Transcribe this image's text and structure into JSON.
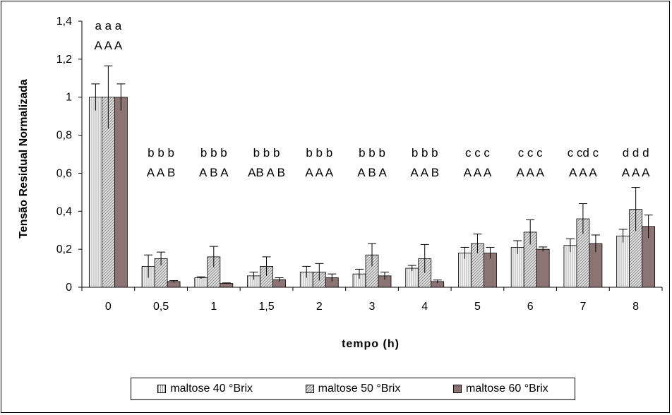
{
  "chart_data": {
    "type": "bar",
    "xlabel": "tempo (h)",
    "ylabel": "Tensão Residual Normalizada",
    "ylim": [
      0,
      1.4
    ],
    "yticks": [
      "0",
      "0,2",
      "0,4",
      "0,6",
      "0,8",
      "1",
      "1,2",
      "1,4"
    ],
    "categories": [
      "0",
      "0,5",
      "1",
      "1,5",
      "2",
      "3",
      "4",
      "5",
      "6",
      "7",
      "8"
    ],
    "series": [
      {
        "name": "maltose 40 °Brix",
        "color": "#f2f2f2",
        "pattern": "vertical-lines",
        "values": [
          1.0,
          0.11,
          0.05,
          0.06,
          0.08,
          0.07,
          0.1,
          0.18,
          0.21,
          0.22,
          0.27
        ],
        "errors": [
          0.07,
          0.06,
          0.005,
          0.02,
          0.03,
          0.025,
          0.015,
          0.03,
          0.035,
          0.035,
          0.035
        ]
      },
      {
        "name": "maltose 50 °Brix",
        "color": "#dcdcdc",
        "pattern": "diagonal-lines",
        "values": [
          1.0,
          0.15,
          0.16,
          0.11,
          0.08,
          0.17,
          0.15,
          0.23,
          0.29,
          0.36,
          0.41
        ],
        "errors": [
          0.165,
          0.035,
          0.055,
          0.05,
          0.045,
          0.06,
          0.075,
          0.05,
          0.065,
          0.08,
          0.115
        ]
      },
      {
        "name": "maltose 60 °Brix",
        "color": "#8c7474",
        "pattern": "solid",
        "values": [
          1.0,
          0.03,
          0.02,
          0.04,
          0.05,
          0.06,
          0.03,
          0.18,
          0.2,
          0.23,
          0.32
        ],
        "errors": [
          0.07,
          0.005,
          0.003,
          0.01,
          0.02,
          0.02,
          0.008,
          0.03,
          0.012,
          0.045,
          0.06
        ]
      }
    ],
    "annotations_lower": [
      [
        "a",
        "a",
        "a"
      ],
      [
        "b",
        "b",
        "b"
      ],
      [
        "b",
        "b",
        "b"
      ],
      [
        "b",
        "b",
        "b"
      ],
      [
        "b",
        "b",
        "b"
      ],
      [
        "b",
        "b",
        "b"
      ],
      [
        "b",
        "b",
        "b"
      ],
      [
        "c",
        "c",
        "c"
      ],
      [
        "c",
        "c",
        "c"
      ],
      [
        "c",
        "cd",
        "c"
      ],
      [
        "d",
        "d",
        "d"
      ]
    ],
    "annotations_upper": [
      [
        "A",
        "A",
        "A"
      ],
      [
        "A",
        "A",
        "B"
      ],
      [
        "A",
        "B",
        "A"
      ],
      [
        "AB",
        "A",
        "B"
      ],
      [
        "A",
        "A",
        "A"
      ],
      [
        "A",
        "B",
        "A"
      ],
      [
        "A",
        "A",
        "B"
      ],
      [
        "A",
        "A",
        "A"
      ],
      [
        "A",
        "A",
        "A"
      ],
      [
        "A",
        "A",
        "A"
      ],
      [
        "A",
        "A",
        "A"
      ]
    ],
    "legend_position": "bottom",
    "grid": false
  }
}
